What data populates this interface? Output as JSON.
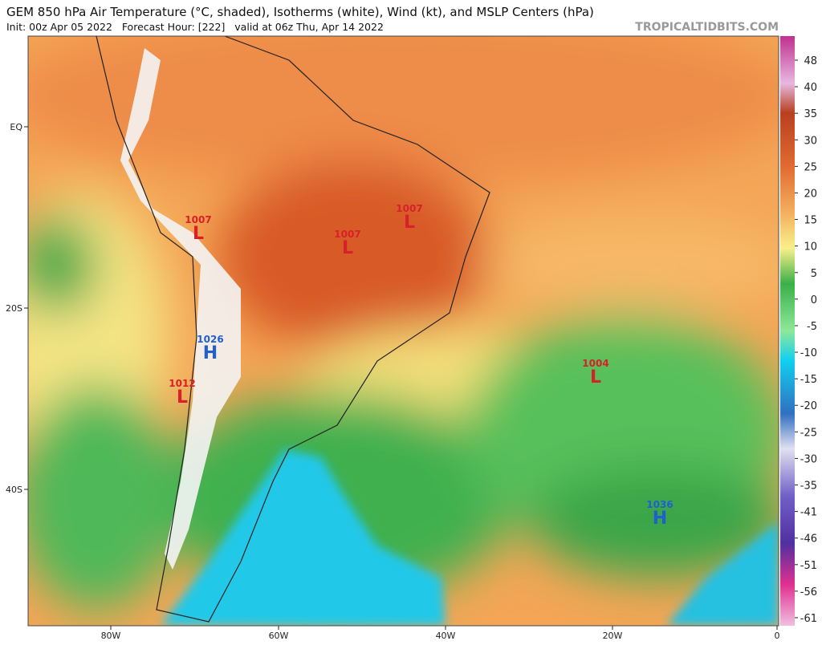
{
  "header": {
    "title": "GEM 850 hPa Air Temperature (°C, shaded), Isotherms (white), Wind (kt), and MSLP Centers (hPa)",
    "subtitle": "Init: 00z Apr 05 2022   Forecast Hour: [222]   valid at 06z Thu, Apr 14 2022",
    "watermark": "TROPICALTIDBITS.COM"
  },
  "map": {
    "lat_labels": [
      "EQ",
      "20S",
      "40S"
    ],
    "lon_labels": [
      "80W",
      "60W",
      "40W",
      "20W",
      "0"
    ],
    "centers": [
      {
        "type": "L",
        "value": "1007"
      },
      {
        "type": "L",
        "value": "1007"
      },
      {
        "type": "L",
        "value": "1007"
      },
      {
        "type": "H",
        "value": "1026"
      },
      {
        "type": "L",
        "value": "1012"
      },
      {
        "type": "L",
        "value": "1004"
      },
      {
        "type": "H",
        "value": "1036"
      }
    ]
  },
  "colorbar": {
    "ticks": [
      48,
      40,
      35,
      30,
      25,
      20,
      15,
      10,
      5,
      0,
      -5,
      -10,
      -15,
      -20,
      -25,
      -30,
      -35,
      -41,
      -46,
      -51,
      -56,
      -61
    ]
  }
}
